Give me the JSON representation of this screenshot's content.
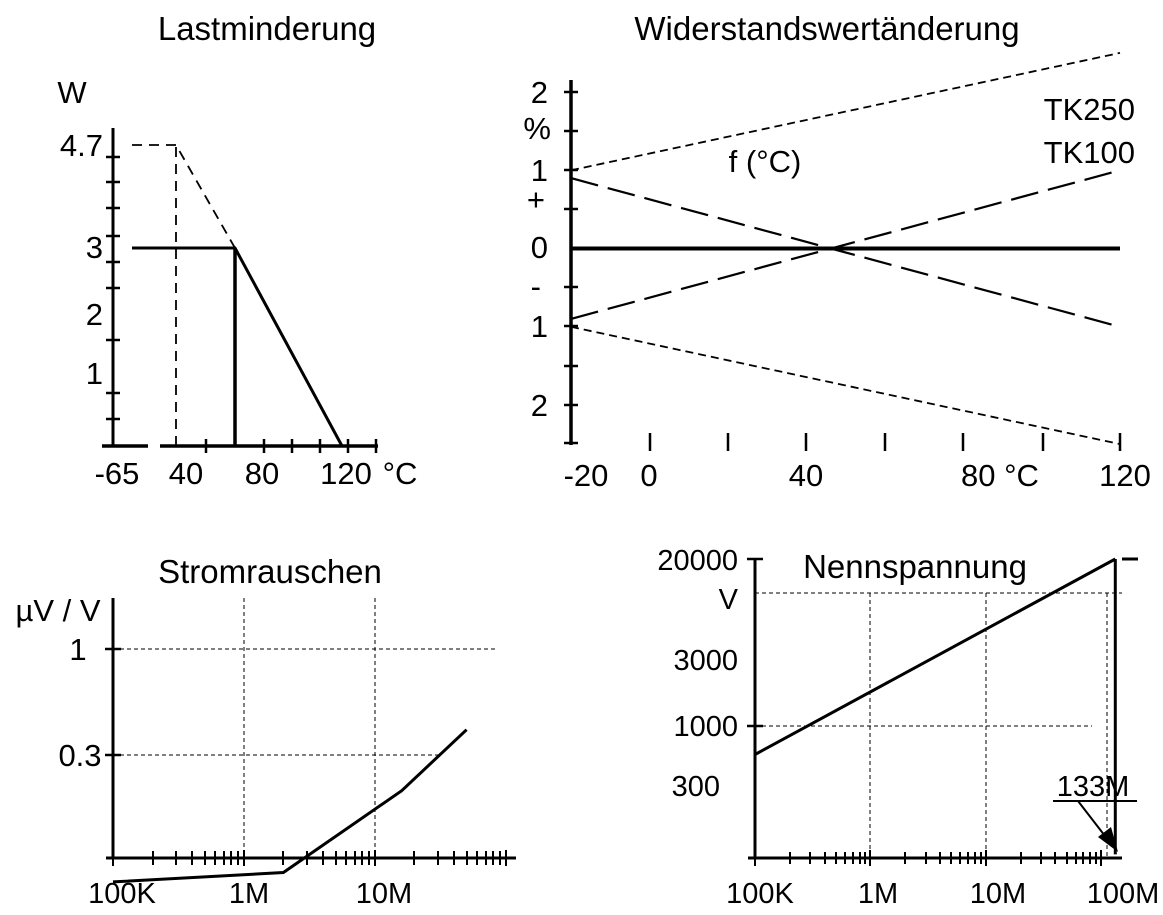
{
  "colors": {
    "ink": "#000000",
    "background": "#ffffff"
  },
  "chart_data": [
    {
      "type": "line",
      "title": "Lastminderung",
      "ylabel": "W",
      "xlabel": "°C",
      "x_tick_labels": [
        "-65",
        "40",
        "80",
        "120"
      ],
      "y_tick_labels": [
        "4.7",
        "3",
        "2",
        "1"
      ],
      "xlim": [
        -65,
        140
      ],
      "ylim": [
        0,
        4.7
      ],
      "series": [
        {
          "style": "solid",
          "x": [
            -65,
            40,
            70,
            125
          ],
          "y": [
            3,
            3,
            3,
            0
          ]
        },
        {
          "style": "dashed",
          "x": [
            -65,
            40,
            70
          ],
          "y": [
            4.7,
            4.7,
            3
          ]
        }
      ],
      "annotations": [
        {
          "style": "solid",
          "x": [
            70,
            70
          ],
          "y": [
            0,
            3
          ]
        },
        {
          "style": "dashed",
          "x": [
            40,
            40
          ],
          "y": [
            0,
            4.7
          ]
        }
      ]
    },
    {
      "type": "line",
      "title": "Widerstandswertänderung",
      "ylabel": "%",
      "xlabel": "°C",
      "annotation_text": "f (°C)",
      "sign_plus": "+",
      "sign_minus": "-",
      "x_tick_labels": [
        "-20",
        "0",
        "40",
        "80 °C",
        "120"
      ],
      "y_tick_labels": [
        "2",
        "1",
        "0",
        "1",
        "2"
      ],
      "xlim": [
        -20,
        120
      ],
      "ylim": [
        -2,
        2
      ],
      "legend_labels": [
        "TK250",
        "TK100"
      ],
      "series": [
        {
          "style": "solid",
          "x": [
            -20,
            120
          ],
          "y": [
            0,
            0
          ]
        },
        {
          "style": "dashed-short",
          "x": [
            -20,
            120
          ],
          "y": [
            1.0,
            2.5
          ]
        },
        {
          "style": "dashed-short",
          "x": [
            -20,
            120
          ],
          "y": [
            -1.0,
            -2.5
          ]
        },
        {
          "style": "dashed-long",
          "x": [
            -20,
            120
          ],
          "y": [
            0.9,
            -1.0
          ]
        },
        {
          "style": "dashed-long",
          "x": [
            -20,
            120
          ],
          "y": [
            -0.9,
            1.0
          ]
        }
      ]
    },
    {
      "type": "line",
      "title": "Stromrauschen",
      "ylabel": "µV / V",
      "x_scale": "log",
      "y_scale": "log",
      "x_tick_labels": [
        "100K",
        "1M",
        "10M"
      ],
      "y_tick_labels": [
        "1",
        "0.3"
      ],
      "xlim": [
        100000,
        100000000
      ],
      "ylim": [
        0.03,
        1.5
      ],
      "grid": true,
      "series": [
        {
          "style": "solid",
          "x": [
            100000,
            2000000,
            16000000,
            50000000
          ],
          "y": [
            0.071,
            0.079,
            0.2,
            0.4
          ]
        }
      ]
    },
    {
      "type": "line",
      "title": "Nennspannung",
      "ylabel": "V",
      "x_scale": "log",
      "y_scale": "log",
      "x_tick_labels": [
        "100K",
        "1M",
        "10M",
        "100M"
      ],
      "y_tick_labels": [
        "20000",
        "3000",
        "1000",
        "300"
      ],
      "xlim": [
        100000,
        200000000
      ],
      "ylim": [
        100,
        20000
      ],
      "grid": true,
      "annotation_text": "133M",
      "series": [
        {
          "style": "solid",
          "x": [
            100000,
            133000000
          ],
          "y": [
            600,
            20000
          ]
        }
      ],
      "annotations": [
        {
          "style": "solid",
          "x": [
            133000000,
            133000000
          ],
          "y": [
            100,
            20000
          ]
        }
      ]
    }
  ]
}
